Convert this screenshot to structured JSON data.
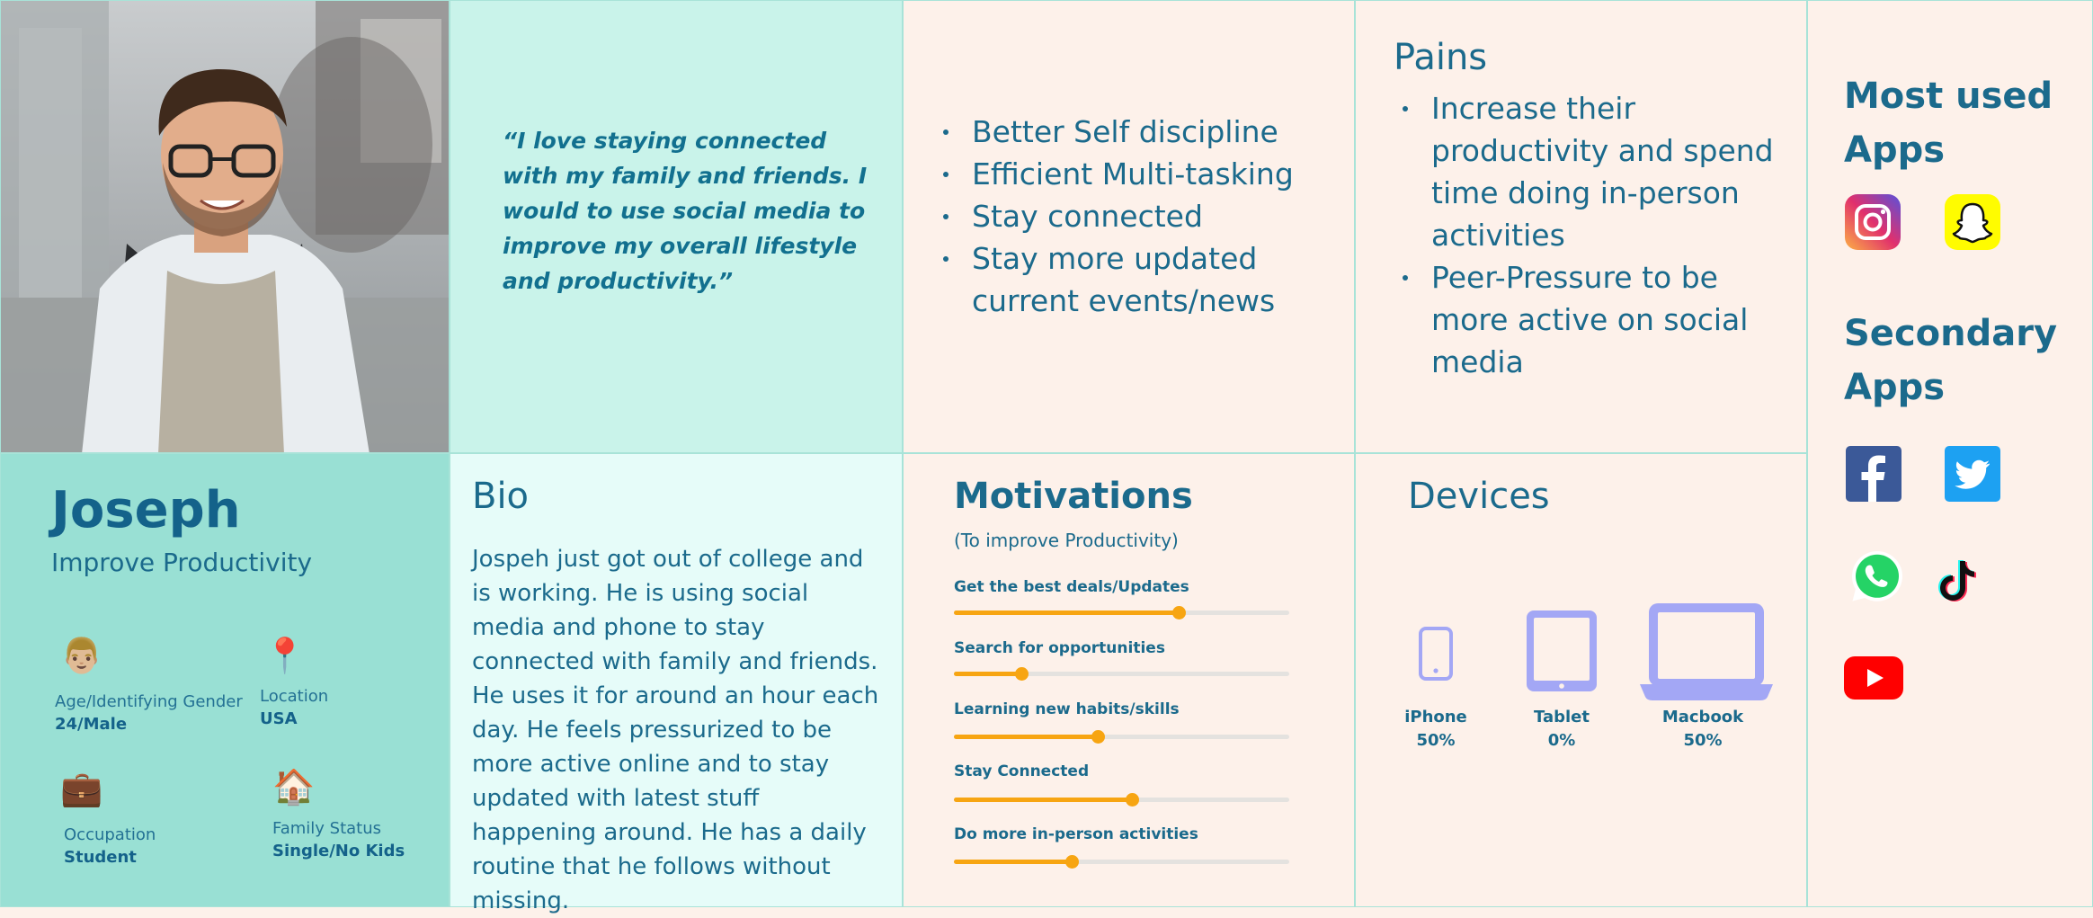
{
  "quote": "“I love staying connected with my family and friends. I would to use social media to improve my  overall lifestyle and productivity.”",
  "goals": [
    "Better Self discipline",
    "Efficient Multi-tasking",
    "Stay connected",
    "Stay more updated current events/news"
  ],
  "pains": {
    "title": "Pains",
    "items": [
      "Increase their productivity and spend time doing in-person activities",
      "Peer-Pressure to be more active on social media"
    ]
  },
  "apps": {
    "most_used_title": "Most used Apps",
    "most_used": [
      "instagram-icon",
      "snapchat-icon"
    ],
    "secondary_title": "Secondary Apps",
    "secondary": [
      "facebook-icon",
      "twitter-icon",
      "whatsapp-icon",
      "tiktok-icon",
      "youtube-icon"
    ]
  },
  "profile": {
    "name": "Joseph",
    "subtitle": "Improve Productivity",
    "attributes": [
      {
        "icon": "👨🏼",
        "label": "Age/Identifying Gender",
        "value": "24/Male"
      },
      {
        "icon": "📍",
        "label": "Location",
        "value": "USA"
      },
      {
        "icon": "💼",
        "label": "Occupation",
        "value": "Student"
      },
      {
        "icon": "🏠",
        "label": "Family Status",
        "value": "Single/No Kids"
      }
    ]
  },
  "bio": {
    "title": "Bio",
    "text": "Jospeh just got out of college and is working. He is using social media and phone to stay connected with family and friends. He uses it for around an hour each day. He feels pressurized to be more active online and to stay updated with latest stuff happening around. He has a daily routine that he follows without missing."
  },
  "motivations": {
    "title": "Motivations",
    "subtitle": "(To improve Productivity)",
    "items": [
      {
        "label": "Get the best deals/Updates",
        "level": 0.67
      },
      {
        "label": "Search for opportunities",
        "level": 0.2
      },
      {
        "label": "Learning new habits/skills",
        "level": 0.43
      },
      {
        "label": "Stay Connected",
        "level": 0.53
      },
      {
        "label": "Do more in-person activities",
        "level": 0.35
      }
    ]
  },
  "devices": {
    "title": "Devices",
    "items": [
      {
        "name": "iPhone",
        "percent": "50%"
      },
      {
        "name": "Tablet",
        "percent": "0%"
      },
      {
        "name": "Macbook",
        "percent": "50%"
      }
    ]
  },
  "colors": {
    "accent_orange": "#f7a512",
    "text_blue": "#1b6a8c",
    "device_purple": "#a3a7f5",
    "quote_bg": "#c9f3ea",
    "profile_bg": "#99e0d4"
  }
}
